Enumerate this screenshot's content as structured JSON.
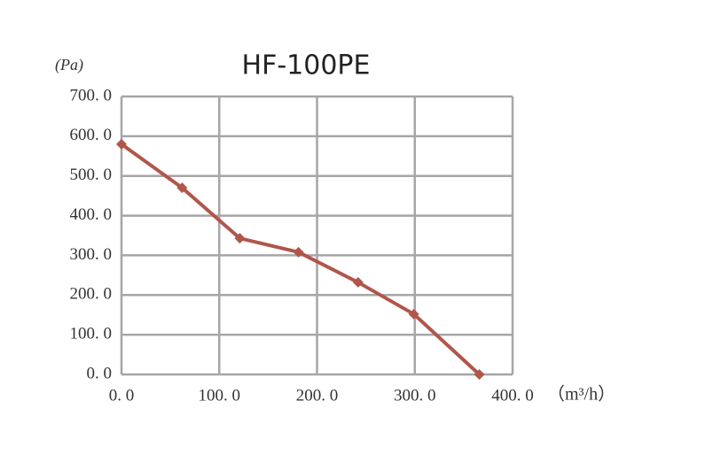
{
  "chart_data": {
    "type": "line",
    "title": "HF-100PE",
    "y_label": "(Pa)",
    "x_label": "（m³/h）",
    "x": [
      0,
      62,
      121,
      181,
      242,
      299,
      366
    ],
    "series": [
      {
        "name": "HF-100PE",
        "color": "#b0564b",
        "values": [
          580,
          470,
          343,
          308,
          232,
          152,
          0
        ]
      }
    ],
    "xlim": [
      0,
      400
    ],
    "ylim": [
      0,
      700
    ],
    "xticks": [
      {
        "value": 0,
        "label": "0. 0"
      },
      {
        "value": 100,
        "label": "100. 0"
      },
      {
        "value": 200,
        "label": "200. 0"
      },
      {
        "value": 300,
        "label": "300. 0"
      },
      {
        "value": 400,
        "label": "400. 0"
      }
    ],
    "yticks": [
      {
        "value": 0,
        "label": "0. 0"
      },
      {
        "value": 100,
        "label": "100. 0"
      },
      {
        "value": 200,
        "label": "200. 0"
      },
      {
        "value": 300,
        "label": "300. 0"
      },
      {
        "value": 400,
        "label": "400. 0"
      },
      {
        "value": 500,
        "label": "500. 0"
      },
      {
        "value": 600,
        "label": "600. 0"
      },
      {
        "value": 700,
        "label": "700. 0"
      }
    ],
    "grid": true
  }
}
